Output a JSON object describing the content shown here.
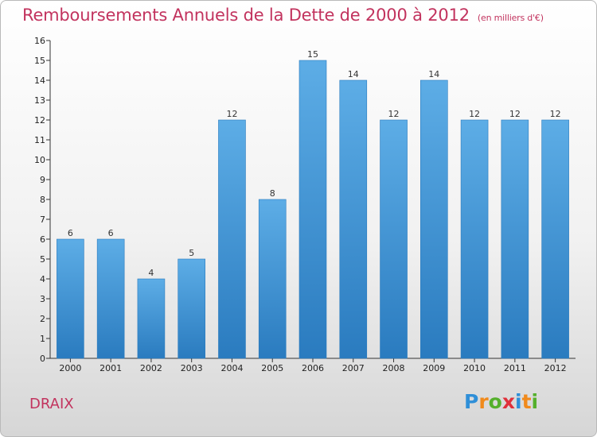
{
  "title": "Remboursements Annuels de la Dette de 2000 à 2012",
  "unit_note": "(en milliers d'€)",
  "commune": "DRAIX",
  "logo": {
    "letters": [
      "P",
      "r",
      "o",
      "x",
      "i",
      "t",
      "i"
    ],
    "colors": [
      "#2f8fd8",
      "#f08a1c",
      "#55b02c",
      "#e0303a",
      "#2f8fd8",
      "#f08a1c",
      "#55b02c"
    ]
  },
  "colors": {
    "title": "#c2335e",
    "bar_light": "#5dade6",
    "bar_dark": "#2a7bbf"
  },
  "chart_data": {
    "type": "bar",
    "title": "Remboursements Annuels de la Dette de 2000 à 2012",
    "categories": [
      "2000",
      "2001",
      "2002",
      "2003",
      "2004",
      "2005",
      "2006",
      "2007",
      "2008",
      "2009",
      "2010",
      "2011",
      "2012"
    ],
    "values": [
      6,
      6,
      4,
      5,
      12,
      8,
      15,
      14,
      12,
      14,
      12,
      12,
      12
    ],
    "ylim": [
      0,
      16
    ],
    "yticks": [
      0,
      1,
      2,
      3,
      4,
      5,
      6,
      7,
      8,
      9,
      10,
      11,
      12,
      13,
      14,
      15,
      16
    ],
    "grid": false,
    "data_labels": true
  }
}
